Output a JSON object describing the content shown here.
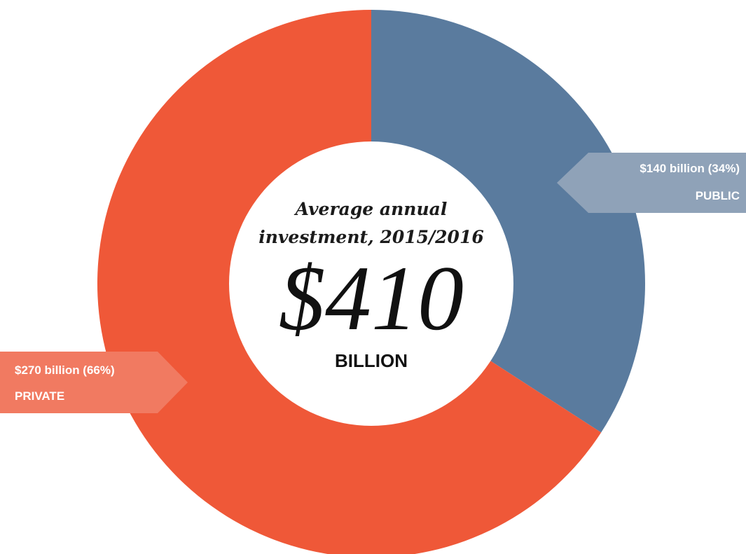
{
  "chart_data": {
    "type": "pie",
    "donut": true,
    "center": {
      "subtitle_line1": "Average annual",
      "subtitle_line2": "investment, 2015/2016",
      "total": "$410",
      "unit": "BILLION"
    },
    "slices": [
      {
        "name": "PUBLIC",
        "value": 140,
        "label": "$140 billion (34%)",
        "percent": 34,
        "color": "#5a7b9e",
        "callout_color": "#8fa2b8"
      },
      {
        "name": "PRIVATE",
        "value": 270,
        "label": "$270 billion (66%)",
        "percent": 66,
        "color": "#ef5838",
        "callout_color": "#f17a61"
      }
    ]
  }
}
